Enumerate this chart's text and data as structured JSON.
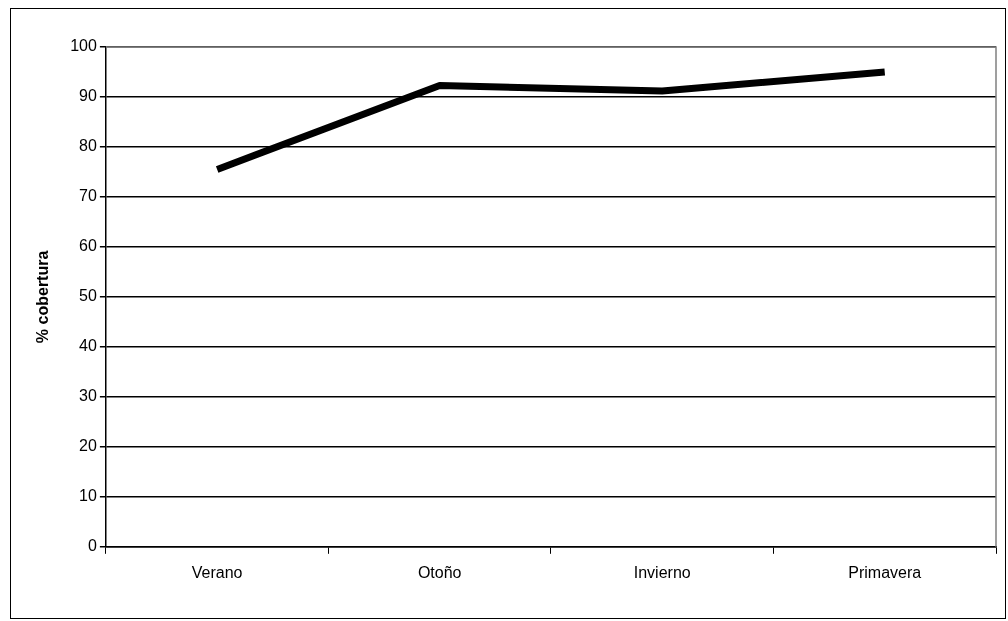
{
  "chart_data": {
    "type": "line",
    "ylabel": "% cobertura",
    "categories": [
      "Verano",
      "Otoño",
      "Invierno",
      "Primavera"
    ],
    "series": [
      {
        "color": "#000000",
        "values": [
          75.5,
          92.3,
          91.2,
          95
        ]
      }
    ],
    "ylim": [
      0,
      100
    ],
    "yticks": [
      0,
      10,
      20,
      30,
      40,
      50,
      60,
      70,
      80,
      90,
      100
    ],
    "grid": "y",
    "legend": false,
    "marker": "none",
    "line_style": "solid"
  }
}
